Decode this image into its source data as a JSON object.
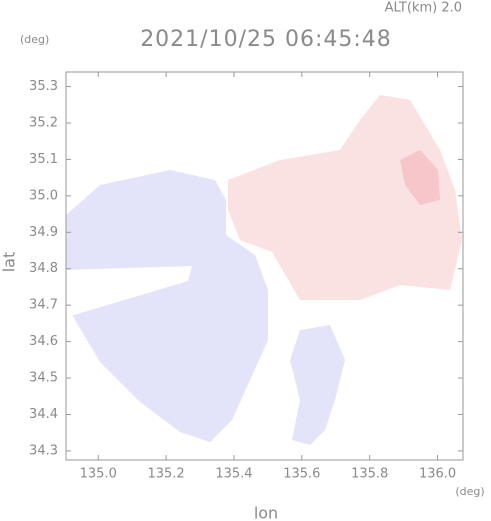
{
  "altitude": "ALT(km) 2.0",
  "chart_data": {
    "type": "map",
    "title": "2021/10/25 06:45:48",
    "x_label": "lon",
    "y_label": "lat",
    "x_unit": "(deg)",
    "y_unit": "(deg)",
    "xlim": [
      134.905,
      136.075
    ],
    "ylim": [
      34.275,
      35.34
    ],
    "xticks": [
      {
        "value": 135,
        "label": "135.0"
      },
      135.2,
      135.4,
      135.6,
      135.8,
      {
        "value": 136,
        "label": "136.0"
      }
    ],
    "yticks": [
      34.3,
      34.4,
      34.5,
      34.6,
      34.7,
      34.8,
      34.9,
      {
        "value": 35,
        "label": "35.0"
      },
      35.1,
      35.2,
      35.3
    ]
  }
}
